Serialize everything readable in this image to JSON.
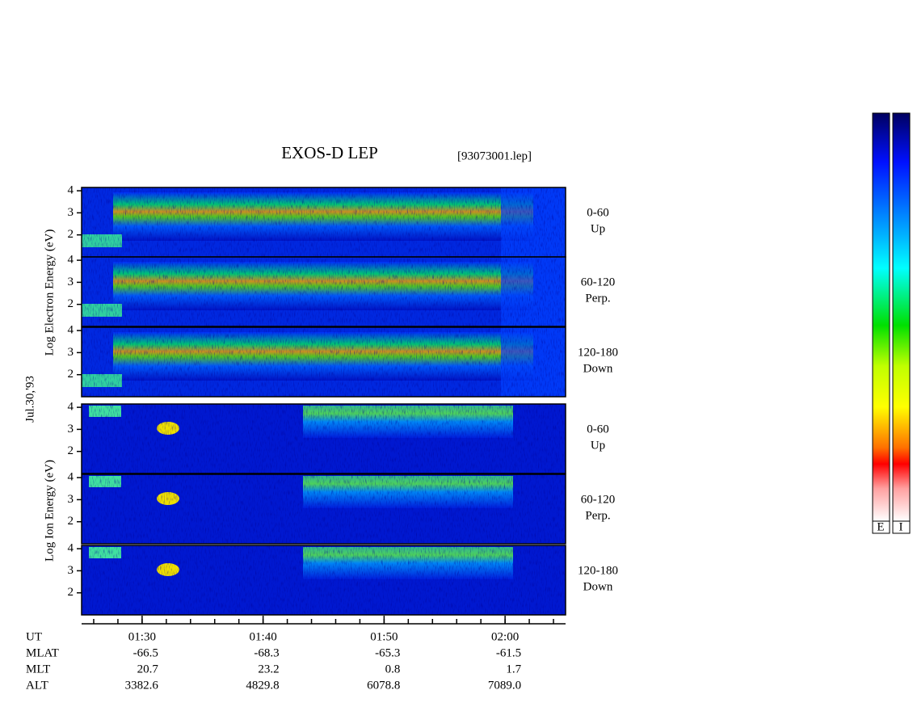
{
  "chart_data": {
    "type": "spectrogram",
    "title": "EXOS-D LEP",
    "file": "[93073001.lep]",
    "date": "Jul.30,'93",
    "electron_label": "Log  Electron  Energy (eV)",
    "ion_label": "Log  Ion  Energy (eV)",
    "xlim": [
      "01:25",
      "02:05"
    ],
    "xticks": [
      "01:30",
      "01:40",
      "01:50",
      "02:00"
    ],
    "panels": [
      {
        "angle": "0-60",
        "direction": "Up",
        "ylim": [
          1,
          4.15
        ],
        "yticks": [
          2,
          3,
          4
        ]
      },
      {
        "angle": "60-120",
        "direction": "Perp.",
        "ylim": [
          1,
          4.15
        ],
        "yticks": [
          2,
          3,
          4
        ]
      },
      {
        "angle": "120-180",
        "direction": "Down",
        "ylim": [
          1,
          4.15
        ],
        "yticks": [
          2,
          3,
          4
        ]
      },
      {
        "angle": "0-60",
        "direction": "Up",
        "ylim": [
          1,
          4.15
        ],
        "yticks": [
          2,
          3,
          4
        ]
      },
      {
        "angle": "60-120",
        "direction": "Perp.",
        "ylim": [
          1,
          4.15
        ],
        "yticks": [
          2,
          3,
          4
        ]
      },
      {
        "angle": "120-180",
        "direction": "Down",
        "ylim": [
          1,
          4.15
        ],
        "yticks": [
          2,
          3,
          4
        ]
      }
    ],
    "time_row": "UT",
    "ephemeris": [
      {
        "name": "MLAT",
        "values": [
          "-66.5",
          "-68.3",
          "-65.3",
          "-61.5"
        ]
      },
      {
        "name": "MLT",
        "values": [
          "20.7",
          "23.2",
          "0.8",
          "1.7"
        ]
      },
      {
        "name": "ALT",
        "values": [
          "3382.6",
          "4829.8",
          "6078.8",
          "7089.0"
        ]
      }
    ],
    "colorbar_labels": [
      "E",
      "I"
    ]
  }
}
